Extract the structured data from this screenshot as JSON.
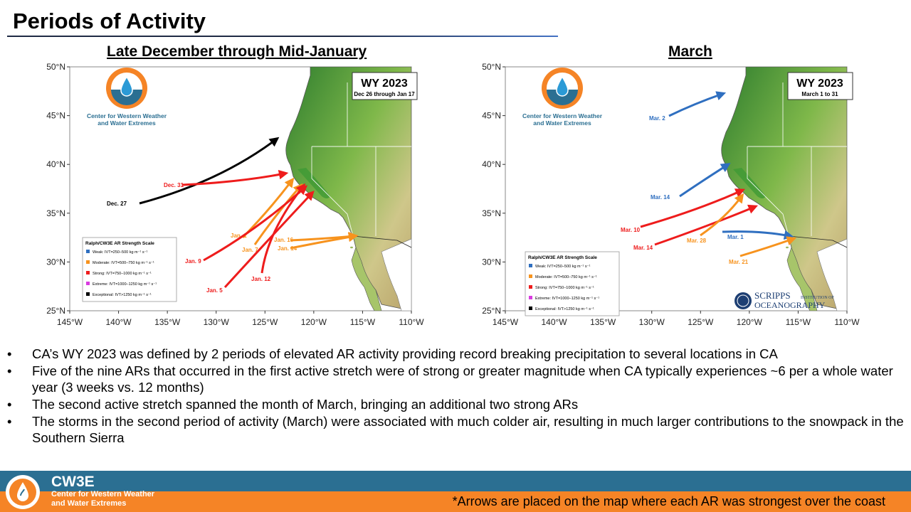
{
  "title": "Periods of Activity",
  "colors": {
    "weak": "#2f6fc0",
    "moderate": "#f7931e",
    "strong": "#ee1c1c",
    "extreme": "#d93be0",
    "exceptional": "#000000",
    "ocean": "#ffffff",
    "land": "#3d8a32",
    "footer_blue": "#2b6f92",
    "footer_orange": "#f58426"
  },
  "axes": {
    "lat_labels": [
      "50°N",
      "45°N",
      "40°N",
      "35°N",
      "30°N",
      "25°N"
    ],
    "lon_labels": [
      "145°W",
      "140°W",
      "135°W",
      "130°W",
      "125°W",
      "120°W",
      "115°W",
      "110°W"
    ]
  },
  "maps": [
    {
      "heading": "Late December through Mid-January",
      "org_name_line1": "Center for Western Weather",
      "org_name_line2": "and Water Extremes",
      "wy_title": "WY 2023",
      "wy_subtitle": "Dec 26 through Jan 17",
      "show_legend": true,
      "show_scripps": false,
      "legend": {
        "title": "Ralph/CW3E AR Strength Scale",
        "items": [
          {
            "label": "Weak: IVT=250–500 kg m⁻¹ s⁻¹",
            "color": "#2f6fc0"
          },
          {
            "label": "Moderate: IVT=500–750 kg m⁻¹ s⁻¹",
            "color": "#f7931e"
          },
          {
            "label": "Strong: IVT=750–1000 kg m⁻¹ s⁻¹",
            "color": "#ee1c1c"
          },
          {
            "label": "Extreme: IVT=1000–1250 kg m⁻¹ s⁻¹",
            "color": "#d93be0"
          },
          {
            "label": "Exceptional: IVT>1250 kg m⁻¹ s⁻¹",
            "color": "#000000"
          }
        ]
      },
      "arrows": [
        {
          "label": "Dec. 27",
          "strength": "exceptional"
        },
        {
          "label": "Dec. 31",
          "strength": "strong"
        },
        {
          "label": "Jan. 1",
          "strength": "moderate"
        },
        {
          "label": "Jan. 7",
          "strength": "moderate"
        },
        {
          "label": "Jan. 9",
          "strength": "strong"
        },
        {
          "label": "Jan. 5",
          "strength": "strong"
        },
        {
          "label": "Jan. 12",
          "strength": "strong"
        },
        {
          "label": "Jan. 16",
          "strength": "moderate"
        },
        {
          "label": "Jan. 14",
          "strength": "moderate"
        }
      ]
    },
    {
      "heading": "March",
      "org_name_line1": "Center for Western Weather",
      "org_name_line2": "and Water Extremes",
      "wy_title": "WY 2023",
      "wy_subtitle": "March 1 to 31",
      "show_legend": true,
      "show_scripps": true,
      "scripps_line1": "SCRIPPS",
      "scripps_line1_small": "INSTITUTION OF",
      "scripps_line2": "OCEANOGRAPHY",
      "legend": {
        "title": "Ralph/CW3E AR Strength Scale",
        "items": [
          {
            "label": "Weak: IVT=250–500 kg m⁻¹ s⁻¹",
            "color": "#2f6fc0"
          },
          {
            "label": "Moderate: IVT=500–750 kg m⁻¹ s⁻¹",
            "color": "#f7931e"
          },
          {
            "label": "Strong: IVT=750–1000 kg m⁻¹ s⁻¹",
            "color": "#ee1c1c"
          },
          {
            "label": "Extreme: IVT=1000–1250 kg m⁻¹ s⁻¹",
            "color": "#d93be0"
          },
          {
            "label": "Exceptional: IVT>1250 kg m⁻¹ s⁻¹",
            "color": "#000000"
          }
        ]
      },
      "arrows": [
        {
          "label": "Mar. 2",
          "strength": "weak"
        },
        {
          "label": "Mar. 14",
          "strength": "weak"
        },
        {
          "label": "Mar. 10",
          "strength": "strong"
        },
        {
          "label": "Mar. 14",
          "strength": "strong"
        },
        {
          "label": "Mar. 28",
          "strength": "moderate"
        },
        {
          "label": "Mar. 1",
          "strength": "weak"
        },
        {
          "label": "Mar. 21",
          "strength": "moderate"
        }
      ]
    }
  ],
  "bullets": [
    "CA’s WY 2023 was defined by 2 periods of elevated AR activity providing record breaking precipitation to several locations in CA",
    "Five of the nine ARs that occurred in the first active stretch were of strong or greater magnitude when CA typically experiences ~6 per a whole water year (3 weeks vs. 12 months)",
    "The second active stretch spanned the month of March, bringing an additional two strong ARs",
    "The storms in the second period of activity (March) were associated with much colder air, resulting in much larger contributions to the snowpack in the Southern Sierra"
  ],
  "footer": {
    "brand": "CW3E",
    "sub_line1": "Center for Western Weather",
    "sub_line2": "and Water Extremes",
    "note": "*Arrows are placed on the map where each AR was strongest over the coast"
  }
}
